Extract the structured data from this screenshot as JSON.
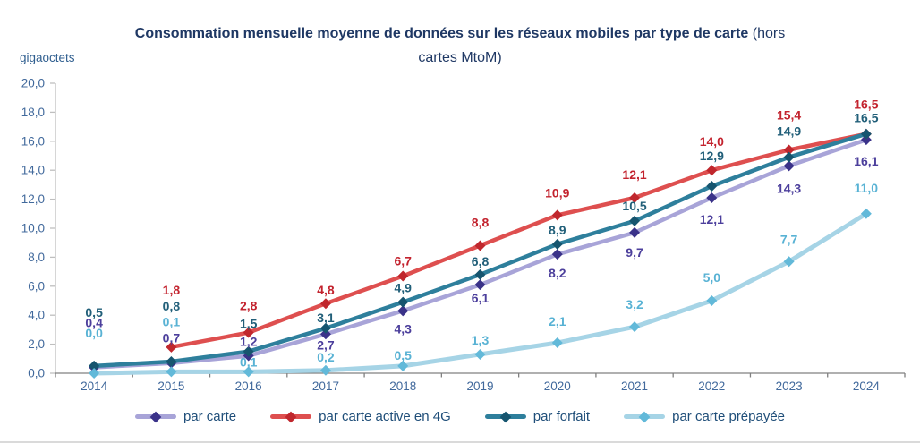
{
  "title": {
    "bold": "Consommation mensuelle moyenne de données sur les réseaux mobiles par type de carte",
    "normal": " (hors cartes MtoM)"
  },
  "palette": {
    "title_text": "#1F3864",
    "axis_text": "#41699C",
    "legend_text": "#1F4E79",
    "axis_line": "#808080",
    "y_axis_line": "#BFBFBF"
  },
  "chart_data": {
    "type": "line",
    "title": "Consommation mensuelle moyenne de données sur les réseaux mobiles par type de carte (hors cartes MtoM)",
    "ylabel": "gigaoctets",
    "ylim": [
      0,
      20
    ],
    "ytick_step": 2,
    "decimal_separator": ",",
    "grid": false,
    "legend_position": "bottom",
    "categories": [
      "2014",
      "2015",
      "2016",
      "2017",
      "2018",
      "2019",
      "2020",
      "2021",
      "2022",
      "2023",
      "2024"
    ],
    "series": [
      {
        "name": "par carte",
        "line_color": "#A8A4D8",
        "marker_color": "#3A3289",
        "label_color": "#4C3F9C",
        "values": [
          0.4,
          0.7,
          1.2,
          2.7,
          4.3,
          6.1,
          8.2,
          9.7,
          12.1,
          14.3,
          16.1
        ]
      },
      {
        "name": "par carte active en 4G",
        "line_color": "#DE4F4F",
        "marker_color": "#C0272D",
        "label_color": "#C3232E",
        "values": [
          null,
          1.8,
          2.8,
          4.8,
          6.7,
          8.8,
          10.9,
          12.1,
          14.0,
          15.4,
          16.5
        ]
      },
      {
        "name": "par forfait",
        "line_color": "#2E7F9C",
        "marker_color": "#16556F",
        "label_color": "#215F79",
        "values": [
          0.5,
          0.8,
          1.5,
          3.1,
          4.9,
          6.8,
          8.9,
          10.5,
          12.9,
          14.9,
          16.5
        ]
      },
      {
        "name": "par carte prépayée",
        "line_color": "#A6D4E6",
        "marker_color": "#62B9D9",
        "label_color": "#58B2D4",
        "values": [
          0.0,
          0.1,
          0.1,
          0.2,
          0.5,
          1.3,
          2.1,
          3.2,
          5.0,
          7.7,
          11.0
        ]
      }
    ]
  }
}
